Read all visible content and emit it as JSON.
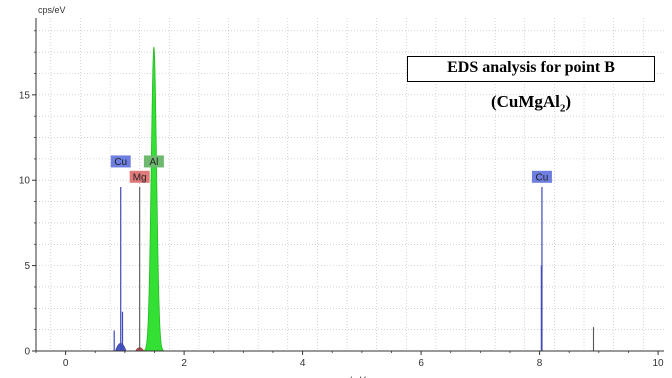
{
  "chart_data": {
    "type": "area",
    "ylabel": "cps/eV",
    "xlabel": "keV",
    "xlim": [
      -0.5,
      10.1
    ],
    "ylim": [
      0,
      19.5
    ],
    "x_ticks": [
      0,
      2,
      4,
      6,
      8,
      10
    ],
    "y_ticks": [
      0,
      5,
      10,
      15
    ],
    "grid": true,
    "annotation": {
      "title": "EDS analysis for point B",
      "formula_main": "(CuMgAl",
      "formula_sub": "2",
      "formula_end": ")"
    },
    "peaks": [
      {
        "element": "Cu",
        "energy": 0.93,
        "height": 9.6,
        "color": "#5560c8"
      },
      {
        "element": "Mg",
        "energy": 1.25,
        "height": 9.6,
        "color": "#d46a6a"
      },
      {
        "element": "Al",
        "energy": 1.49,
        "height": 17.8,
        "color": "#33dd33"
      },
      {
        "element": "Cu",
        "energy": 8.04,
        "height": 9.6,
        "color": "#5560c8"
      }
    ],
    "element_labels": [
      {
        "text": "Cu",
        "energy": 0.93,
        "level": 11.1,
        "color": "#6f7fe0"
      },
      {
        "text": "Mg",
        "energy": 1.25,
        "level": 10.2,
        "color": "#e07a7a"
      },
      {
        "text": "Al",
        "energy": 1.49,
        "level": 11.1,
        "color": "#6fb86f"
      },
      {
        "text": "Cu",
        "energy": 8.04,
        "level": 10.2,
        "color": "#6f7fe0"
      }
    ],
    "spectrum": {
      "green_peak": {
        "center": 1.49,
        "sigma": 0.045,
        "height": 17.8
      },
      "blue_lines": [
        {
          "energy": 0.82,
          "height": 1.2
        },
        {
          "energy": 0.93,
          "height": 9.6
        },
        {
          "energy": 0.96,
          "height": 2.3
        },
        {
          "energy": 8.04,
          "height": 9.6
        },
        {
          "energy": 8.03,
          "height": 5.0
        }
      ],
      "dark_lines": [
        {
          "energy": 1.25,
          "height": 9.6
        },
        {
          "energy": 8.91,
          "height": 1.4
        }
      ]
    }
  }
}
